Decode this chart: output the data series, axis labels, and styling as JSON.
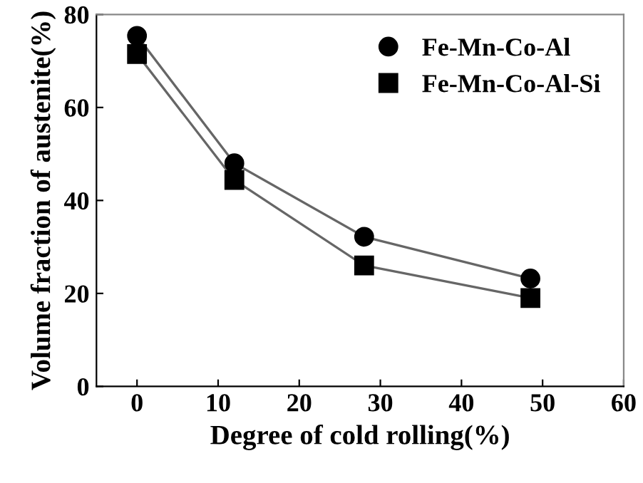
{
  "chart_data": {
    "type": "line",
    "xlabel": "Degree of cold rolling(%)",
    "ylabel": "Volume fraction of austenite(%)",
    "xlim": [
      -5,
      60
    ],
    "xticks": [
      0,
      10,
      20,
      30,
      40,
      50,
      60
    ],
    "ylim": [
      0,
      80
    ],
    "yticks": [
      0,
      20,
      40,
      60,
      80
    ],
    "grid": false,
    "legend": "top right",
    "line_style": "solid",
    "series": [
      {
        "name": "Fe-Mn-Co-Al",
        "color": "#000000",
        "marker": "circle",
        "x": [
          0,
          12,
          28,
          48.5
        ],
        "values": [
          75.4,
          48,
          32.2,
          23.2
        ]
      },
      {
        "name": "Fe-Mn-Co-Al-Si",
        "color": "#000000",
        "marker": "square",
        "x": [
          0,
          12,
          28,
          48.5
        ],
        "values": [
          71.5,
          44.4,
          26,
          19
        ]
      }
    ]
  }
}
